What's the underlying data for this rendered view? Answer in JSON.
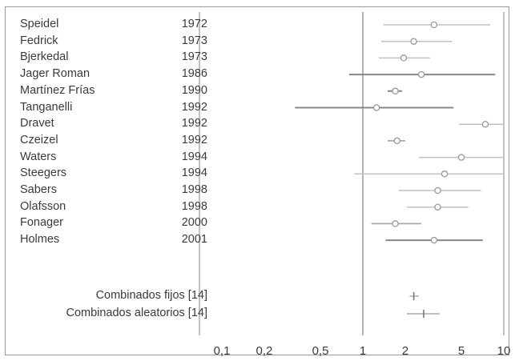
{
  "chart_data": {
    "type": "forest",
    "x_scale": "log",
    "xlim": [
      0.1,
      10
    ],
    "ticks": [
      "0,1",
      "0,2",
      "0,5",
      "1",
      "2",
      "5",
      "10"
    ],
    "tick_values": [
      0.1,
      0.2,
      0.5,
      1,
      2,
      5,
      10
    ],
    "reference_line": 1,
    "studies": [
      {
        "name": "Speidel",
        "year": "1972",
        "or": 3.2,
        "lo": 1.4,
        "hi": 8.0,
        "weight": "low"
      },
      {
        "name": "Fedrick",
        "year": "1973",
        "or": 2.3,
        "lo": 1.35,
        "hi": 4.3,
        "weight": "low"
      },
      {
        "name": "Bjerkedal",
        "year": "1973",
        "or": 1.95,
        "lo": 1.3,
        "hi": 3.0,
        "weight": "low"
      },
      {
        "name": "Jager Roman",
        "year": "1986",
        "or": 2.6,
        "lo": 0.8,
        "hi": 8.7,
        "weight": "high"
      },
      {
        "name": "Martínez Frías",
        "year": "1990",
        "or": 1.7,
        "lo": 1.5,
        "hi": 1.9,
        "weight": "high"
      },
      {
        "name": "Tanganelli",
        "year": "1992",
        "or": 1.25,
        "lo": 0.33,
        "hi": 4.4,
        "weight": "high"
      },
      {
        "name": "Dravet",
        "year": "1992",
        "or": 7.4,
        "lo": 4.8,
        "hi": 10.0,
        "weight": "low"
      },
      {
        "name": "Czeizel",
        "year": "1992",
        "or": 1.75,
        "lo": 1.5,
        "hi": 2.0,
        "weight": "mid"
      },
      {
        "name": "Waters",
        "year": "1994",
        "or": 5.0,
        "lo": 2.5,
        "hi": 10.0,
        "weight": "low"
      },
      {
        "name": "Steegers",
        "year": "1994",
        "or": 3.8,
        "lo": 0.87,
        "hi": 10.0,
        "weight": "low"
      },
      {
        "name": "Sabers",
        "year": "1998",
        "or": 3.4,
        "lo": 1.8,
        "hi": 6.9,
        "weight": "low"
      },
      {
        "name": "Olafsson",
        "year": "1998",
        "or": 3.4,
        "lo": 2.05,
        "hi": 5.6,
        "weight": "low"
      },
      {
        "name": "Fonager",
        "year": "2000",
        "or": 1.7,
        "lo": 1.15,
        "hi": 2.6,
        "weight": "mid"
      },
      {
        "name": "Holmes",
        "year": "2001",
        "or": 3.2,
        "lo": 1.45,
        "hi": 7.1,
        "weight": "high"
      }
    ],
    "pooled": [
      {
        "name": "Combinados fijos [14]",
        "or": 2.3,
        "lo": 2.15,
        "hi": 2.5
      },
      {
        "name": "Combinados aleatorios [14]",
        "or": 2.7,
        "lo": 2.05,
        "hi": 3.5
      }
    ],
    "colors": {
      "high": "#888888",
      "mid": "#aaaaaa",
      "low": "#c2c2c2",
      "axis": "#9a9a9a",
      "ref": "#888888"
    }
  }
}
